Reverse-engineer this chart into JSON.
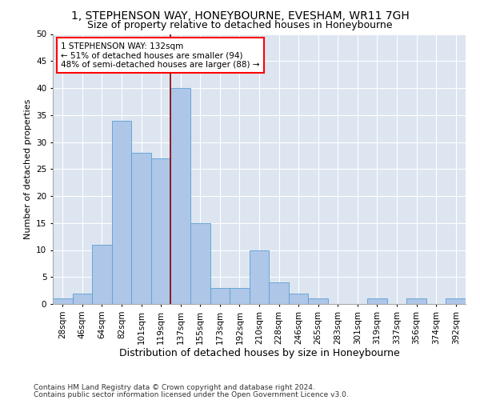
{
  "title1": "1, STEPHENSON WAY, HONEYBOURNE, EVESHAM, WR11 7GH",
  "title2": "Size of property relative to detached houses in Honeybourne",
  "xlabel": "Distribution of detached houses by size in Honeybourne",
  "ylabel": "Number of detached properties",
  "categories": [
    "28sqm",
    "46sqm",
    "64sqm",
    "82sqm",
    "101sqm",
    "119sqm",
    "137sqm",
    "155sqm",
    "173sqm",
    "192sqm",
    "210sqm",
    "228sqm",
    "246sqm",
    "265sqm",
    "283sqm",
    "301sqm",
    "319sqm",
    "337sqm",
    "356sqm",
    "374sqm",
    "392sqm"
  ],
  "values": [
    1,
    2,
    11,
    34,
    28,
    27,
    40,
    15,
    3,
    3,
    10,
    4,
    2,
    1,
    0,
    0,
    1,
    0,
    1,
    0,
    1
  ],
  "bar_color": "#aec6e8",
  "bar_edge_color": "#5a9fd4",
  "property_line_x": 5.5,
  "annotation_text": "1 STEPHENSON WAY: 132sqm\n← 51% of detached houses are smaller (94)\n48% of semi-detached houses are larger (88) →",
  "annotation_box_color": "white",
  "annotation_box_edge_color": "red",
  "vline_color": "#8b0000",
  "ylim": [
    0,
    50
  ],
  "yticks": [
    0,
    5,
    10,
    15,
    20,
    25,
    30,
    35,
    40,
    45,
    50
  ],
  "background_color": "#dde5f0",
  "footer_line1": "Contains HM Land Registry data © Crown copyright and database right 2024.",
  "footer_line2": "Contains public sector information licensed under the Open Government Licence v3.0.",
  "title1_fontsize": 10,
  "title2_fontsize": 9,
  "xlabel_fontsize": 9,
  "ylabel_fontsize": 8,
  "tick_fontsize": 7.5,
  "annotation_fontsize": 7.5,
  "footer_fontsize": 6.5
}
